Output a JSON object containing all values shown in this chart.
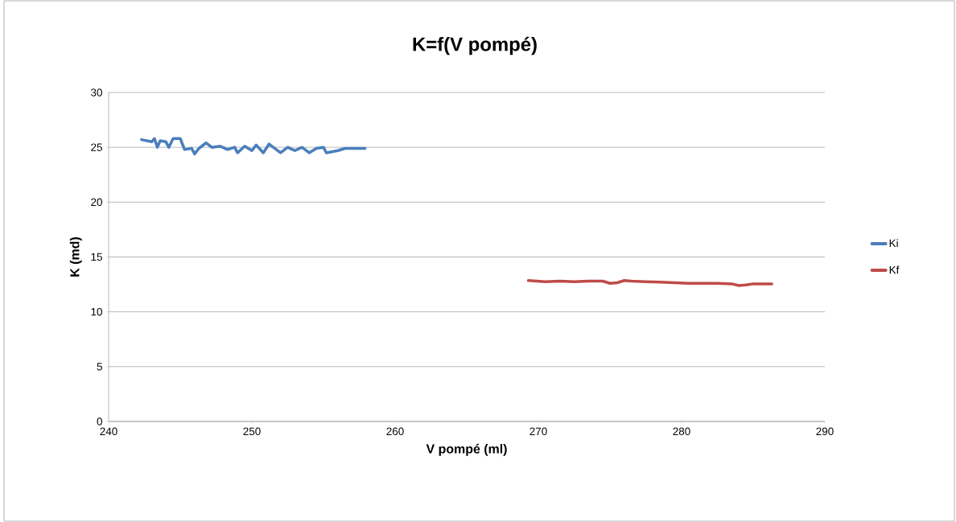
{
  "chart_data": {
    "type": "line",
    "title": "K=f(V pompé)",
    "xlabel": "V pompé (ml)",
    "ylabel": "K (md)",
    "xlim": [
      240,
      290
    ],
    "xticks": [
      240,
      250,
      260,
      270,
      280,
      290
    ],
    "ylim": [
      0,
      30
    ],
    "yticks": [
      0,
      5,
      10,
      15,
      20,
      25,
      30
    ],
    "grid": "y",
    "legend": "right",
    "marker": "none",
    "line_style": "solid",
    "series": [
      {
        "name": "Ki",
        "color": "#4a7ebb",
        "x": [
          242.3,
          243.0,
          243.2,
          243.4,
          243.6,
          244.0,
          244.2,
          244.5,
          245.0,
          245.3,
          245.8,
          246.0,
          246.3,
          246.8,
          247.2,
          247.8,
          248.3,
          248.8,
          249.0,
          249.5,
          250.0,
          250.3,
          250.8,
          251.2,
          251.7,
          252.0,
          252.5,
          253.0,
          253.5,
          254.0,
          254.5,
          255.0,
          255.2,
          256.0,
          256.5,
          257.9
        ],
        "values": [
          25.7,
          25.5,
          25.8,
          25.0,
          25.6,
          25.5,
          25.0,
          25.8,
          25.8,
          24.8,
          24.9,
          24.4,
          24.9,
          25.4,
          25.0,
          25.1,
          24.8,
          25.0,
          24.5,
          25.1,
          24.7,
          25.2,
          24.5,
          25.3,
          24.8,
          24.5,
          25.0,
          24.7,
          25.0,
          24.5,
          24.9,
          25.0,
          24.5,
          24.7,
          24.9,
          24.9
        ]
      },
      {
        "name": "Kf",
        "color": "#be4b48",
        "x": [
          269.3,
          270.5,
          271.5,
          272.5,
          273.5,
          274.5,
          275.0,
          275.5,
          276.0,
          276.5,
          277.5,
          278.5,
          279.5,
          280.5,
          281.5,
          282.5,
          283.5,
          284.0,
          284.5,
          285.0,
          286.3
        ],
        "values": [
          12.85,
          12.75,
          12.8,
          12.75,
          12.8,
          12.8,
          12.6,
          12.65,
          12.85,
          12.8,
          12.75,
          12.7,
          12.65,
          12.6,
          12.6,
          12.6,
          12.55,
          12.4,
          12.45,
          12.55,
          12.55
        ]
      }
    ]
  }
}
